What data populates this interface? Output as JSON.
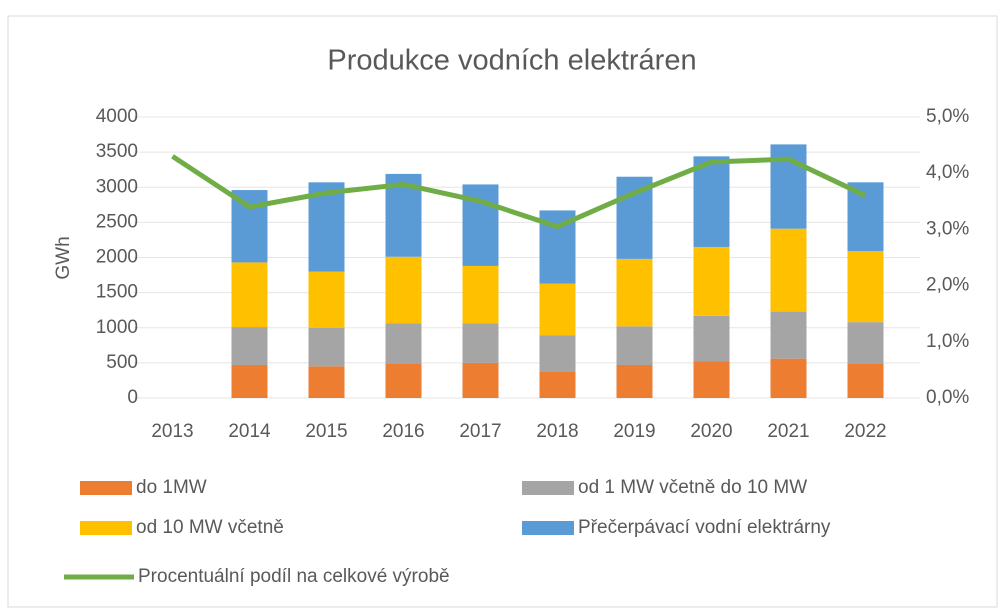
{
  "chart_data": {
    "type": "bar",
    "stacked": true,
    "title": "Produkce vodních elektráren",
    "y_label": "GWh",
    "categories": [
      "2013",
      "2014",
      "2015",
      "2016",
      "2017",
      "2018",
      "2019",
      "2020",
      "2021",
      "2022"
    ],
    "series": [
      {
        "name": "do 1MW",
        "color": "#ed7d31",
        "values": [
          null,
          470,
          450,
          490,
          500,
          380,
          470,
          520,
          560,
          490
        ]
      },
      {
        "name": "od 1 MW včetně do 10 MW",
        "color": "#a5a5a5",
        "values": [
          null,
          540,
          550,
          570,
          560,
          510,
          550,
          650,
          670,
          590
        ]
      },
      {
        "name": "od 10 MW včetně",
        "color": "#ffc000",
        "values": [
          null,
          920,
          800,
          950,
          820,
          740,
          960,
          980,
          1180,
          1010
        ]
      },
      {
        "name": "Přečerpávací vodní elektrárny",
        "color": "#5b9bd5",
        "values": [
          null,
          1030,
          1270,
          1180,
          1160,
          1040,
          1170,
          1290,
          1200,
          980
        ]
      },
      {
        "name": "Procentuální podíl na celkové výrobě",
        "color": "#70ad47",
        "type": "line",
        "axis": "y2",
        "values": [
          4.3,
          3.4,
          3.65,
          3.8,
          3.5,
          3.05,
          3.65,
          4.2,
          4.25,
          3.6
        ]
      }
    ],
    "ylim": [
      0,
      4000
    ],
    "yticks": [
      0,
      500,
      1000,
      1500,
      2000,
      2500,
      3000,
      3500,
      4000
    ],
    "y2lim": [
      0,
      5
    ],
    "y2ticks": [
      {
        "value": 0,
        "label": "0,0%"
      },
      {
        "value": 1,
        "label": "1,0%"
      },
      {
        "value": 2,
        "label": "2,0%"
      },
      {
        "value": 3,
        "label": "3,0%"
      },
      {
        "value": 4,
        "label": "4,0%"
      },
      {
        "value": 5,
        "label": "5,0%"
      }
    ],
    "grid": true
  }
}
